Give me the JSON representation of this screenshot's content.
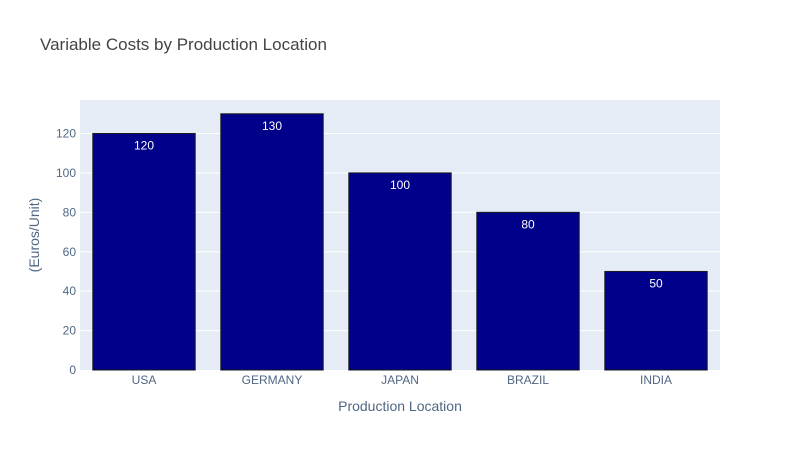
{
  "chart_data": {
    "type": "bar",
    "title": "Variable Costs by Production Location",
    "xlabel": "Production Location",
    "ylabel": "(Euros/Unit)",
    "categories": [
      "USA",
      "GERMANY",
      "JAPAN",
      "BRAZIL",
      "INDIA"
    ],
    "values": [
      120,
      130,
      100,
      80,
      50
    ],
    "data_labels": [
      "120",
      "130",
      "100",
      "80",
      "50"
    ],
    "ylim": [
      0,
      137
    ],
    "yticks": [
      0,
      20,
      40,
      60,
      80,
      100,
      120
    ],
    "grid": true,
    "legend": "none"
  },
  "colors": {
    "bar": "#00008b",
    "bar_outline": "#1a1a1a",
    "plot_background": "#e5ecf6",
    "background": "#ffffff"
  }
}
